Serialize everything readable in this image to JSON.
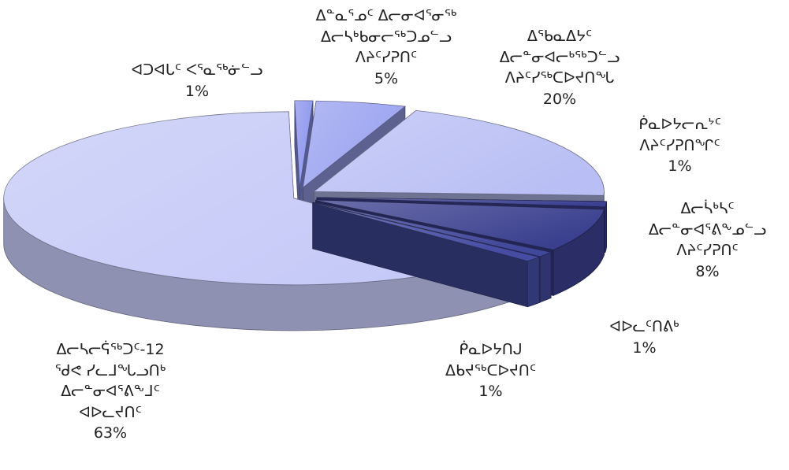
{
  "chart_data": {
    "type": "pie",
    "style": "3d-exploded",
    "slices": [
      {
        "label": [
          "ᐊᑐᐊᒐᑦ ᐸᕐᓇᖅᓃᓪᓗ"
        ],
        "value": 1,
        "display": "1%",
        "color": "#8c95ee"
      },
      {
        "label": [
          "ᐃᓐᓇᕐᓄᑦ ᐃᓕᓂᐊᕐᓂᖅ",
          "ᐃᓕᓴᒃᑲᓂᓕᖅᑐᓄᓪᓗ",
          "ᐱᔨᑦᓯᕈᑎᑦ"
        ],
        "value": 5,
        "display": "5%",
        "color": "#9aa2f0"
      },
      {
        "label": [
          "ᐃᖃᓇᐃᔭᑦ",
          "ᐃᓕᓐᓂᐊᓕᒃᖅᑐᓪᓗ",
          "ᐱᔨᑦᓯᖅᑕᐅᔪᑎᖓ"
        ],
        "value": 20,
        "display": "20%",
        "color": "#b9bff4"
      },
      {
        "label": [
          "ᑮᓇᐅᔭᓕᕆᔾᑦ",
          "ᐱᔨᑦᓯᕈᑎᖏᑦ"
        ],
        "value": 1,
        "display": "1%",
        "color": "#3c4192"
      },
      {
        "label": [
          "ᐃᓕᓵᒃᓴᑦ",
          "ᐃᓕᓐᓂᐊᕐᕕᖕᓄᓪᓗ",
          "ᐱᔨᑦᓯᕈᑎᑦ"
        ],
        "value": 8,
        "display": "8%",
        "color": "#3a3f8e"
      },
      {
        "label": [
          "ᐊᐅᓚᑦᑎᕕᒃ"
        ],
        "value": 1,
        "display": "1%",
        "color": "#41479a"
      },
      {
        "label": [
          "ᑮᓇᐅᔭᑎᒍ",
          "ᐃᑲᔪᖅᑕᐅᔪᑎᑦ"
        ],
        "value": 1,
        "display": "1%",
        "color": "#454ca2"
      },
      {
        "label": [
          "ᐃᓕᓴᓕᕌᖅᑐᑦ-12",
          "ᖁᕙ ᓯᓚᒧᖓᓗᑎᒃ",
          "ᐃᓕᓐᓂᐊᕐᕕᖕᒧᑦ",
          "ᐊᐅᓚᔪᑎᑦ"
        ],
        "value": 63,
        "display": "63%",
        "color": "#c5c9f7"
      }
    ],
    "title": "",
    "legend": "none"
  }
}
